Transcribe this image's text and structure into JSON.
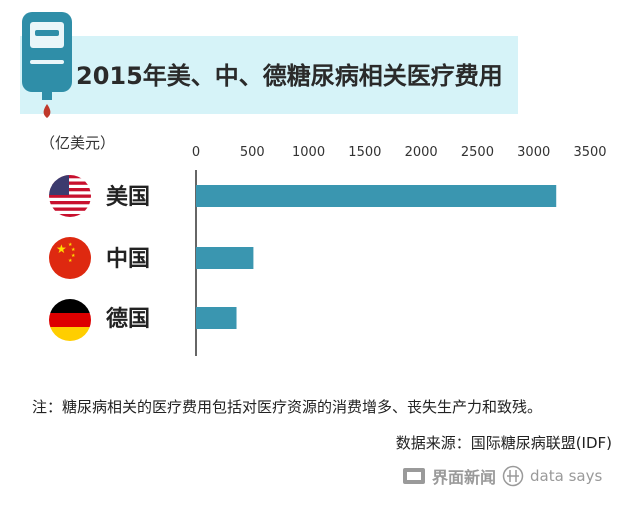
{
  "title": "2015年美、中、德糖尿病相关医疗费用",
  "unit_label": "（亿美元）",
  "note": "注：糖尿病相关的医疗费用包括对医疗资源的消费增多、丧失生产力和致残。",
  "source": "数据来源：国际糖尿病联盟(IDF)",
  "brand": {
    "name": "界面新闻",
    "sub": "data says"
  },
  "colors": {
    "bar": "#3a96b0",
    "band": "#d6f3f8",
    "axis": "#333333",
    "accent_red": "#c0392b"
  },
  "icons": {
    "meter": "glucose-meter-icon",
    "flags": [
      "us-flag-icon",
      "cn-flag-icon",
      "de-flag-icon"
    ]
  },
  "chart_data": {
    "type": "bar",
    "orientation": "horizontal",
    "categories": [
      "美国",
      "中国",
      "德国"
    ],
    "values": [
      3200,
      510,
      360
    ],
    "xlim": [
      0,
      3500
    ],
    "xticks": [
      "0",
      "500",
      "1000",
      "1500",
      "2000",
      "2500",
      "3000",
      "3500"
    ],
    "grid": false,
    "legend": "none"
  }
}
